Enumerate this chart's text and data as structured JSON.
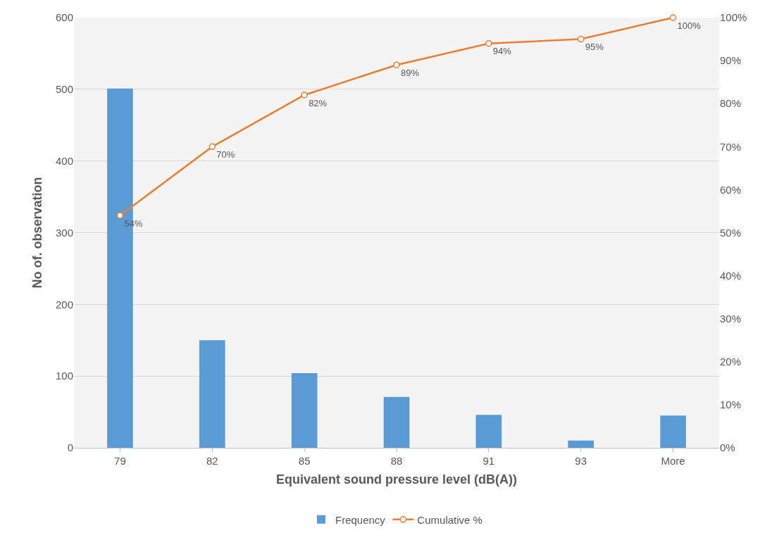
{
  "chart_data": {
    "type": "bar",
    "xlabel": "Equivalent sound pressure level (dB(A))",
    "ylabel": "No of. observation",
    "categories": [
      "79",
      "82",
      "85",
      "88",
      "91",
      "93",
      "More"
    ],
    "series": [
      {
        "name": "Frequency",
        "color": "#5b9bd5",
        "values": [
          501,
          150,
          104,
          71,
          46,
          10,
          45
        ]
      },
      {
        "name": "Cumulative %",
        "type": "line",
        "axis": "y2",
        "color": "#ed7d31",
        "marker": "circle",
        "values": [
          54,
          70,
          82,
          89,
          94,
          95,
          100
        ],
        "value_labels": [
          "54%",
          "70%",
          "82%",
          "89%",
          "94%",
          "95%",
          "100%"
        ]
      }
    ],
    "ylim": [
      0,
      600
    ],
    "yticks": [
      0,
      100,
      200,
      300,
      400,
      500,
      600
    ],
    "y2lim": [
      0,
      100
    ],
    "y2ticks": [
      {
        "value": 0,
        "label": "0%"
      },
      {
        "value": 10,
        "label": "10%"
      },
      {
        "value": 20,
        "label": "20%"
      },
      {
        "value": 30,
        "label": "30%"
      },
      {
        "value": 40,
        "label": "40%"
      },
      {
        "value": 50,
        "label": "50%"
      },
      {
        "value": 60,
        "label": "60%"
      },
      {
        "value": 70,
        "label": "70%"
      },
      {
        "value": 80,
        "label": "80%"
      },
      {
        "value": 90,
        "label": "90%"
      },
      {
        "value": 100,
        "label": "100%"
      }
    ],
    "grid": "y",
    "legend": "bottom"
  }
}
